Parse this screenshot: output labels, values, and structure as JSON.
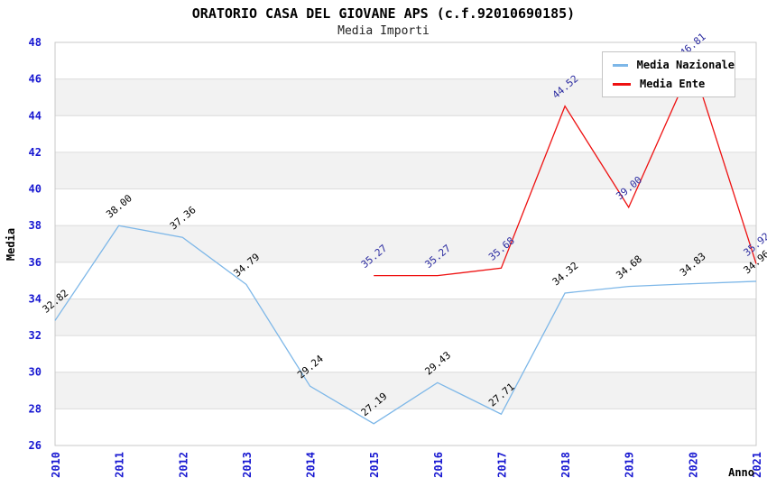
{
  "header": {
    "title": "ORATORIO CASA DEL GIOVANE APS (c.f.92010690185)",
    "subtitle": "Media Importi"
  },
  "chart_data": {
    "type": "line",
    "x": [
      "2010",
      "2011",
      "2012",
      "2013",
      "2014",
      "2015",
      "2016",
      "2017",
      "2018",
      "2019",
      "2020",
      "2021"
    ],
    "series": [
      {
        "name": "Media Nazionale",
        "color": "#7db7e8",
        "label_color": "#000000",
        "start_index": 0,
        "values": [
          32.82,
          38.0,
          37.36,
          34.79,
          29.24,
          27.19,
          29.43,
          27.71,
          34.32,
          34.68,
          34.83,
          34.96
        ]
      },
      {
        "name": "Media Ente",
        "color": "#ee1111",
        "label_color": "#2b2ba0",
        "start_index": 5,
        "values": [
          35.27,
          35.27,
          35.68,
          44.52,
          39.0,
          46.81,
          35.92
        ]
      }
    ],
    "xlabel": "Anno",
    "ylabel": "Media",
    "ylim": [
      26,
      48
    ],
    "ytick_step": 2,
    "label_decimals": 2,
    "legend_position": "top-right",
    "grid": "horizontal",
    "colors": {
      "tick_label": "#1717d1",
      "grid_line": "#dcdcdc",
      "band_main": "#ffffff",
      "band_alt": "#f2f2f2",
      "plot_border": "#c8c8c8",
      "title": "#000000"
    }
  }
}
